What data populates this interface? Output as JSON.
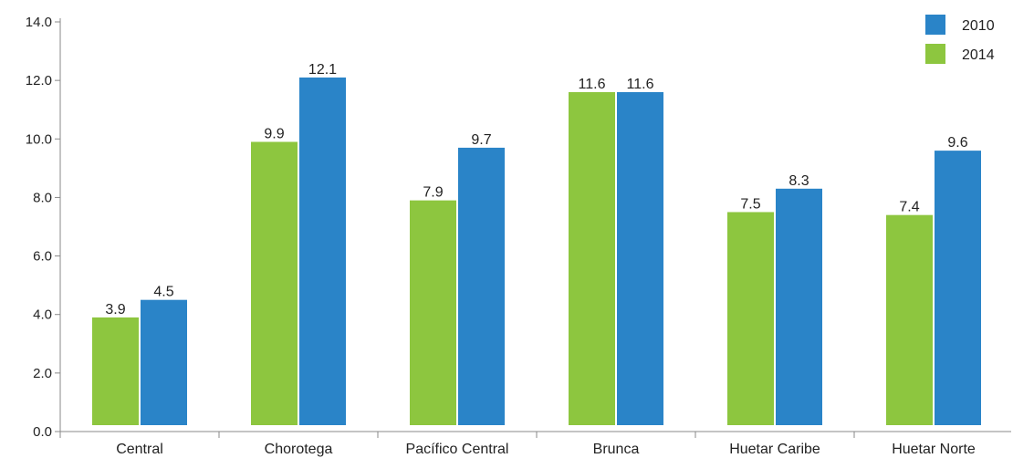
{
  "chart_data": {
    "type": "bar",
    "categories": [
      "Central",
      "Chorotega",
      "Pacífico Central",
      "Brunca",
      "Huetar Caribe",
      "Huetar Norte"
    ],
    "series": [
      {
        "name": "2014",
        "color": "#8dc63f",
        "values": [
          3.9,
          9.9,
          7.9,
          11.6,
          7.5,
          7.4
        ]
      },
      {
        "name": "2010",
        "color": "#2a84c8",
        "values": [
          4.5,
          12.1,
          9.7,
          11.6,
          8.3,
          9.6
        ]
      }
    ],
    "data_labels": [
      [
        "3.9",
        "9.9",
        "7.9",
        "11.6",
        "7.5",
        "7.4"
      ],
      [
        "4.5",
        "12.1",
        "9.7",
        "11.6",
        "8.3",
        "9.6"
      ]
    ],
    "y_ticks": [
      "0.0",
      "2.0",
      "4.0",
      "6.0",
      "8.0",
      "10.0",
      "12.0",
      "14.0"
    ],
    "ylim": [
      0,
      14
    ],
    "legend_order": [
      "2010",
      "2014"
    ],
    "legend_position": "top-right",
    "grid": false,
    "title": "",
    "xlabel": "",
    "ylabel": ""
  }
}
